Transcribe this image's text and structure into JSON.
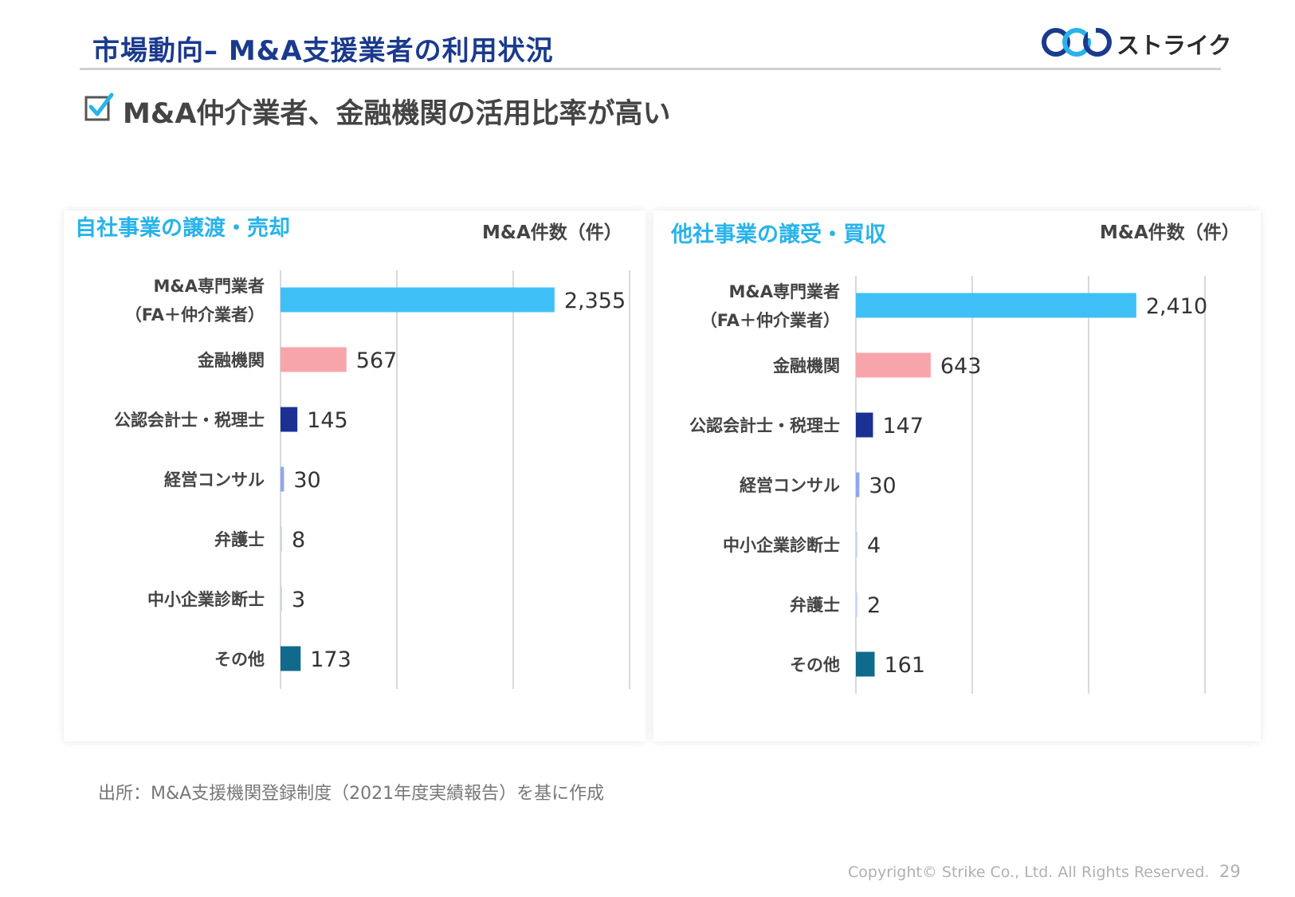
{
  "header": {
    "title": "市場動向– M&A支援業者の利用状況",
    "logo_text": "ストライク"
  },
  "headline": {
    "text": "M&A仲介業者、金融機関の活用比率が高い",
    "icon": "checkbox-checked-icon"
  },
  "colors": {
    "title": "#1a3a8c",
    "panel_title": "#29b3ea",
    "bar_specialist": "#3ec0f6",
    "bar_financial": "#f7a5ab",
    "bar_accountant": "#1a3193",
    "bar_consultant": "#8fa6f0",
    "bar_lawyer": "#c9d7f3",
    "bar_sme": "#c9d7f3",
    "bar_other": "#0f6a8c"
  },
  "chart_data": [
    {
      "type": "bar",
      "orientation": "horizontal",
      "title": "自社事業の譲渡・売却",
      "unit_label": "M&A件数（件）",
      "categories": [
        [
          "M&A専門業者",
          "（FA＋仲介業者）"
        ],
        [
          "金融機関"
        ],
        [
          "公認会計士・税理士"
        ],
        [
          "経営コンサル"
        ],
        [
          "弁護士"
        ],
        [
          "中小企業診断士"
        ],
        [
          "その他"
        ]
      ],
      "values": [
        2355,
        567,
        145,
        30,
        8,
        3,
        173
      ],
      "value_labels": [
        "2,355",
        "567",
        "145",
        "30",
        "8",
        "3",
        "173"
      ],
      "bar_colors": [
        "#3ec0f6",
        "#f7a5ab",
        "#1a3193",
        "#8fa6f0",
        "#c9d7f3",
        "#c9d7f3",
        "#0f6a8c"
      ],
      "xlim": [
        0,
        3000
      ],
      "grid": true
    },
    {
      "type": "bar",
      "orientation": "horizontal",
      "title": "他社事業の譲受・買収",
      "unit_label": "M&A件数（件）",
      "categories": [
        [
          "M&A専門業者",
          "（FA＋仲介業者）"
        ],
        [
          "金融機関"
        ],
        [
          "公認会計士・税理士"
        ],
        [
          "経営コンサル"
        ],
        [
          "中小企業診断士"
        ],
        [
          "弁護士"
        ],
        [
          "その他"
        ]
      ],
      "values": [
        2410,
        643,
        147,
        30,
        4,
        2,
        161
      ],
      "value_labels": [
        "2,410",
        "643",
        "147",
        "30",
        "4",
        "2",
        "161"
      ],
      "bar_colors": [
        "#3ec0f6",
        "#f7a5ab",
        "#1a3193",
        "#8fa6f0",
        "#c9d7f3",
        "#c9d7f3",
        "#0f6a8c"
      ],
      "xlim": [
        0,
        3000
      ],
      "grid": true
    }
  ],
  "footer": {
    "source": "出所：M&A支援機関登録制度（2021年度実績報告）を基に作成",
    "copyright": "Copyright© Strike Co., Ltd. All Rights Reserved.",
    "page_number": "29"
  }
}
